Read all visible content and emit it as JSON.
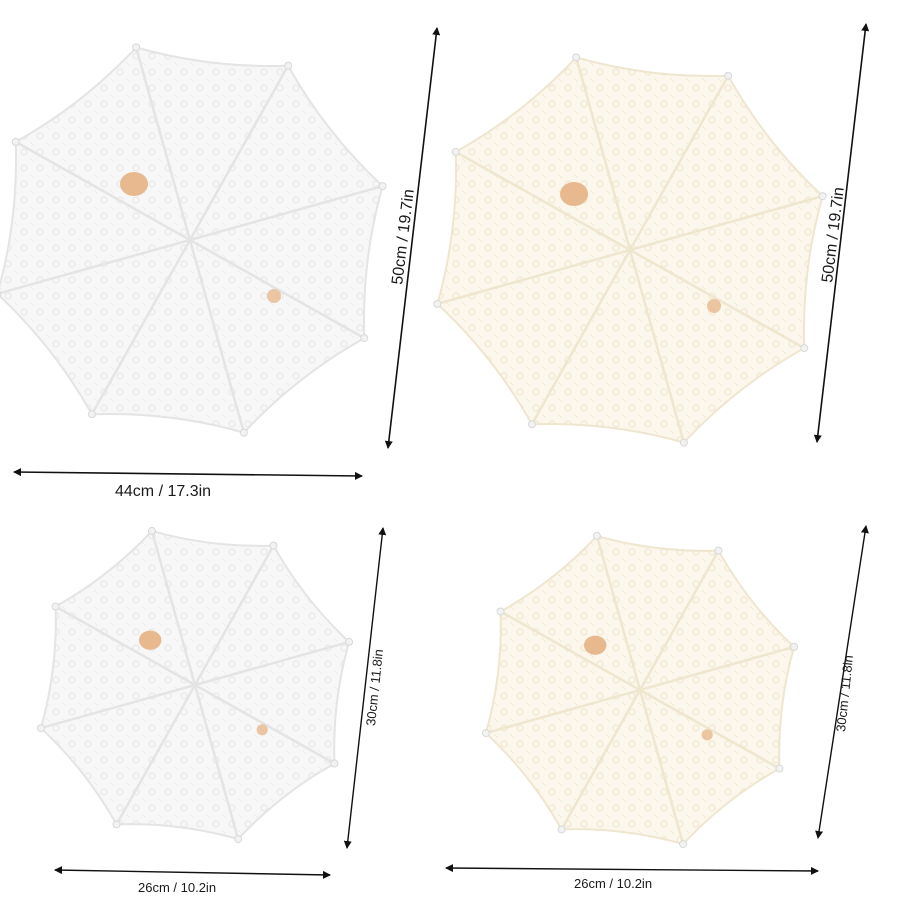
{
  "umbrellas": [
    {
      "id": "large-white",
      "color": "#f7f7f7",
      "lace_color": "#e4e4e4",
      "height_label": "50cm / 19.7in",
      "width_label": "44cm / 17.3in"
    },
    {
      "id": "large-beige",
      "color": "#fbf7ec",
      "lace_color": "#efe6cf",
      "height_label": "50cm / 19.7in",
      "width_label": ""
    },
    {
      "id": "small-white",
      "color": "#f7f7f7",
      "lace_color": "#e4e4e4",
      "height_label": "30cm / 11.8in",
      "width_label": "26cm / 10.2in"
    },
    {
      "id": "small-beige",
      "color": "#fbf7ec",
      "lace_color": "#efe6cf",
      "height_label": "30cm / 11.8in",
      "width_label": "26cm / 10.2in"
    }
  ],
  "handle_color": "#e8b98e",
  "arrow_color": "#111111"
}
